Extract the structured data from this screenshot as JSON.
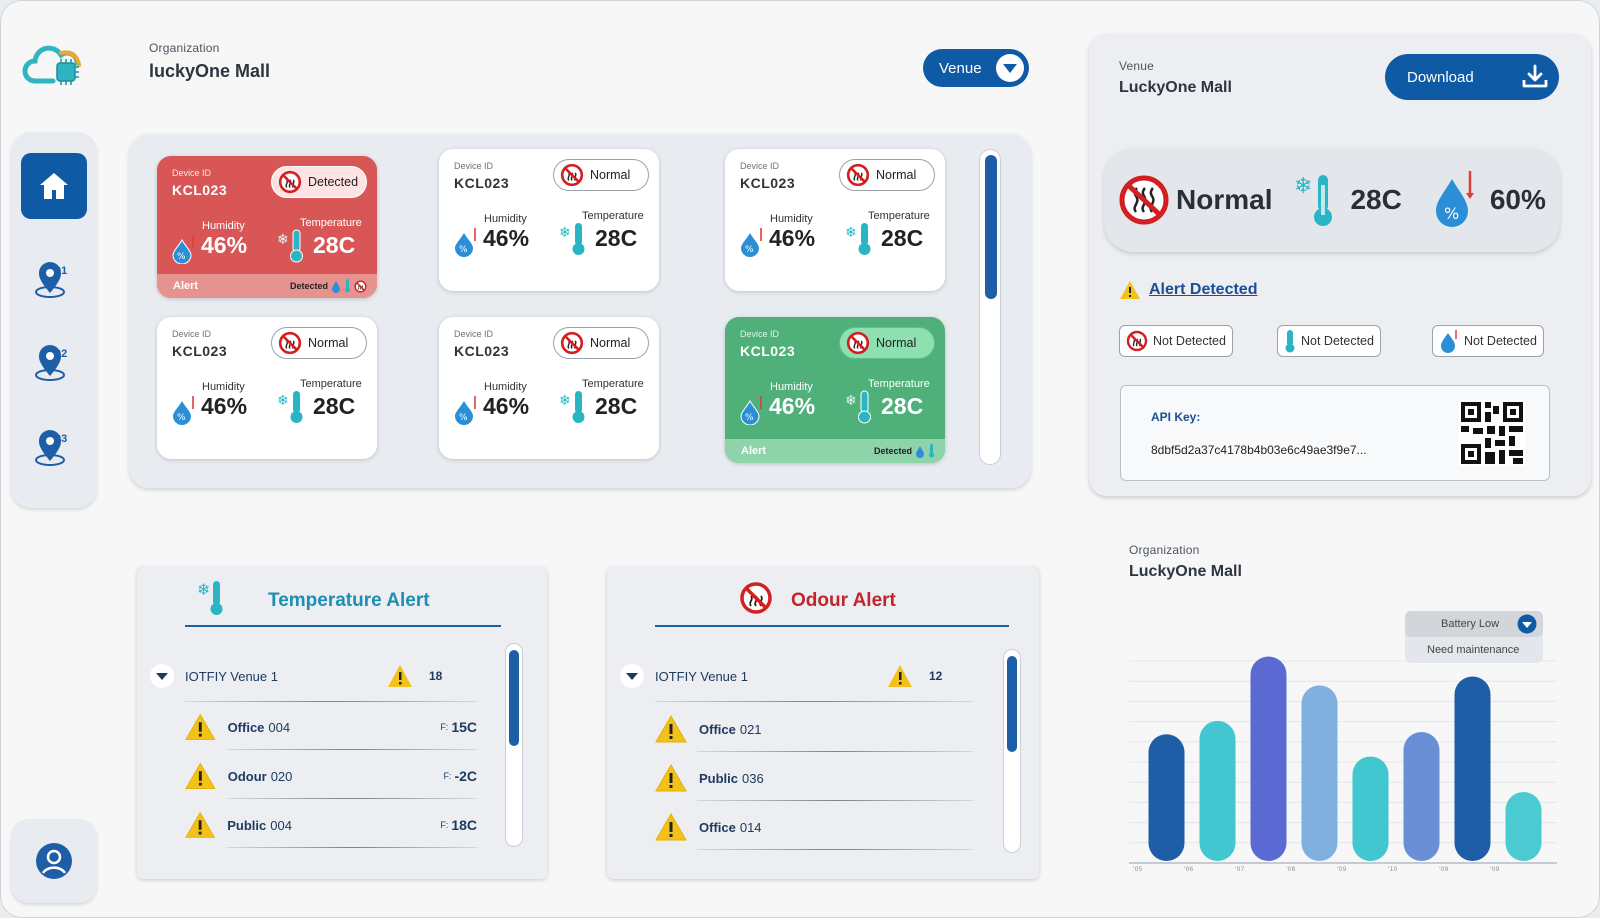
{
  "header": {
    "org_label": "Organization",
    "org_name": "luckyOne Mall",
    "venue_button": "Venue"
  },
  "sidebar": {
    "items": [
      {
        "name": "home",
        "label": ""
      },
      {
        "name": "location-01",
        "label": "01"
      },
      {
        "name": "location-02",
        "label": "02"
      },
      {
        "name": "location-03",
        "label": "03"
      }
    ]
  },
  "devices": [
    {
      "id_label": "Device ID",
      "id": "KCL023",
      "status": "Detected",
      "humidity_label": "Humidity",
      "humidity": "46%",
      "temperature_label": "Temperature",
      "temperature": "28C",
      "footer_left": "Alert",
      "footer_right": "Detected",
      "theme": "red"
    },
    {
      "id_label": "Device ID",
      "id": "KCL023",
      "status": "Normal",
      "humidity_label": "Humidity",
      "humidity": "46%",
      "temperature_label": "Temperature",
      "temperature": "28C",
      "theme": "white"
    },
    {
      "id_label": "Device ID",
      "id": "KCL023",
      "status": "Normal",
      "humidity_label": "Humidity",
      "humidity": "46%",
      "temperature_label": "Temperature",
      "temperature": "28C",
      "theme": "white"
    },
    {
      "id_label": "Device ID",
      "id": "KCL023",
      "status": "Normal",
      "humidity_label": "Humidity",
      "humidity": "46%",
      "temperature_label": "Temperature",
      "temperature": "28C",
      "theme": "white"
    },
    {
      "id_label": "Device ID",
      "id": "KCL023",
      "status": "Normal",
      "humidity_label": "Humidity",
      "humidity": "46%",
      "temperature_label": "Temperature",
      "temperature": "28C",
      "theme": "white"
    },
    {
      "id_label": "Device ID",
      "id": "KCL023",
      "status": "Normal",
      "humidity_label": "Humidity",
      "humidity": "46%",
      "temperature_label": "Temperature",
      "temperature": "28C",
      "footer_left": "Alert",
      "footer_right": "Detected",
      "theme": "green"
    }
  ],
  "venue_panel": {
    "label": "Venue",
    "name": "LuckyOne Mall",
    "download": "Download",
    "summary": {
      "odour": "Normal",
      "temperature": "28C",
      "humidity": "60%"
    },
    "alert_detected": "Alert Detected",
    "chips": [
      "Not Detected",
      "Not Detected",
      "Not Detected"
    ],
    "api_label": "API Key:",
    "api_key": "8dbf5d2a37c4178b4b03e6c49ae3f9e7..."
  },
  "temperature_alert": {
    "title": "Temperature Alert",
    "venue": "IOTFIY Venue 1",
    "count": "18",
    "rows": [
      {
        "name_bold": "Office",
        "name_num": "004",
        "f_label": "F:",
        "value": "15C"
      },
      {
        "name_bold": "Odour",
        "name_num": "020",
        "f_label": "F:",
        "value": "-2C"
      },
      {
        "name_bold": "Public",
        "name_num": "004",
        "f_label": "F:",
        "value": "18C"
      }
    ]
  },
  "odour_alert": {
    "title": "Odour Alert",
    "venue": "IOTFIY Venue 1",
    "count": "12",
    "rows": [
      {
        "name_bold": "Office",
        "name_num": "021"
      },
      {
        "name_bold": "Public",
        "name_num": "036"
      },
      {
        "name_bold": "Office",
        "name_num": "014"
      }
    ]
  },
  "chart_panel": {
    "org_label": "Organization",
    "org_name": "LuckyOne Mall",
    "legend_selected": "Battery Low",
    "legend_other": "Need maintenance"
  },
  "chart_data": {
    "type": "bar",
    "categories": [
      "'05",
      "'06",
      "'07",
      "'08",
      "'09",
      "'10",
      "'09",
      "'09"
    ],
    "series": [
      {
        "values": [
          58,
          64,
          93,
          80,
          48,
          59,
          84,
          32
        ]
      }
    ],
    "ylim": [
      0,
      100
    ],
    "grid": true,
    "bar_colors": [
      "#1e5ea7",
      "#42c6cf",
      "#5a6ad2",
      "#7fb0de",
      "#42c6cf",
      "#6a8fd6",
      "#1e5ea7",
      "#4ccad2"
    ]
  },
  "colors": {
    "primary": "#0f5aa5",
    "alert_red": "#d85756",
    "normal_green": "#4fb07a",
    "teal": "#2bb5c4",
    "warning": "#f2c21a"
  }
}
